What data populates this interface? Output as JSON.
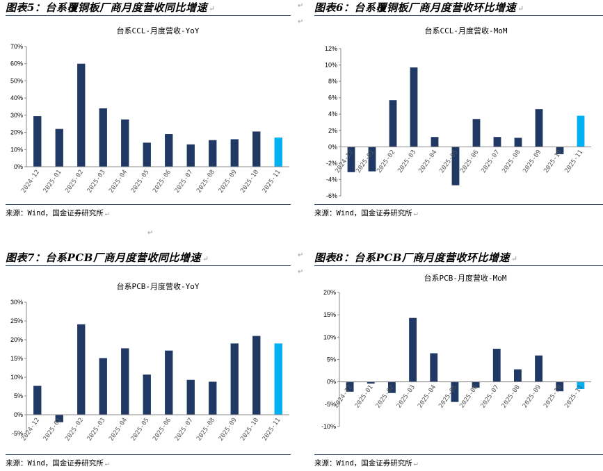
{
  "panels": [
    {
      "id": "fig5",
      "heading": "图表5：台系覆铜板厂商月度营收同比增速",
      "source": "来源：Wind，国金证券研究所",
      "chart_data": {
        "type": "bar",
        "title": "台系CCL-月度营收-YoY",
        "categories": [
          "2024-12",
          "2025-01",
          "2025-02",
          "2025-03",
          "2025-04",
          "2025-05",
          "2025-06",
          "2025-07",
          "2025-08",
          "2025-09",
          "2025-10",
          "2025-11"
        ],
        "values": [
          29.5,
          22,
          60,
          34,
          27.5,
          14,
          19,
          13,
          15.5,
          16,
          20.5,
          17
        ],
        "ylim": [
          0,
          70
        ],
        "yticks": [
          0,
          10,
          20,
          30,
          40,
          50,
          60,
          70
        ],
        "tick_labels": [
          "0%",
          "10%",
          "20%",
          "30%",
          "40%",
          "50%",
          "60%",
          "70%"
        ],
        "colors": {
          "bar": "#1f3864",
          "highlight": "#00b0f0"
        },
        "highlight_index": 11
      }
    },
    {
      "id": "fig6",
      "heading": "图表6：台系覆铜板厂商月度营收环比增速",
      "source": "来源：Wind，国金证券研究所",
      "chart_data": {
        "type": "bar",
        "title": "台系CCL-月度营收-MoM",
        "categories": [
          "2024-12",
          "2025-01",
          "2025-02",
          "2025-03",
          "2025-04",
          "2025-05",
          "2025-06",
          "2025-07",
          "2025-08",
          "2025-09",
          "2025-10",
          "2025-11"
        ],
        "values": [
          -3.1,
          -3.0,
          5.7,
          9.7,
          1.2,
          -4.7,
          3.4,
          1.2,
          1.1,
          4.6,
          -0.9,
          3.8
        ],
        "ylim": [
          -6,
          12
        ],
        "yticks": [
          -6,
          -4,
          -2,
          0,
          2,
          4,
          6,
          8,
          10,
          12
        ],
        "tick_labels": [
          "-6%",
          "-4%",
          "-2%",
          "0%",
          "2%",
          "4%",
          "6%",
          "8%",
          "10%",
          "12%"
        ],
        "colors": {
          "bar": "#1f3864",
          "highlight": "#00b0f0"
        },
        "highlight_index": 11
      }
    },
    {
      "id": "fig7",
      "heading": "图表7：台系PCB厂商月度营收同比增速",
      "source": "来源：Wind，国金证券研究所",
      "chart_data": {
        "type": "bar",
        "title": "台系PCB-月度营收-YoY",
        "categories": [
          "2024-12",
          "2025-01",
          "2025-02",
          "2025-03",
          "2025-04",
          "2025-05",
          "2025-06",
          "2025-07",
          "2025-08",
          "2025-09",
          "2025-10",
          "2025-11"
        ],
        "values": [
          7.7,
          -2.0,
          24.1,
          15.1,
          17.7,
          10.7,
          17.1,
          9.3,
          8.8,
          19.0,
          21.0,
          19.0
        ],
        "ylim": [
          -5,
          30
        ],
        "yticks": [
          -5,
          0,
          5,
          10,
          15,
          20,
          25,
          30
        ],
        "tick_labels": [
          "-5%",
          "0%",
          "5%",
          "10%",
          "15%",
          "20%",
          "25%",
          "30%"
        ],
        "colors": {
          "bar": "#1f3864",
          "highlight": "#00b0f0"
        },
        "highlight_index": 11
      }
    },
    {
      "id": "fig8",
      "heading": "图表8：台系PCB厂商月度营收环比增速",
      "source": "来源：Wind，国金证券研究所",
      "chart_data": {
        "type": "bar",
        "title": "台系PCB-月度营收-MoM",
        "categories": [
          "2024-12",
          "2025-01",
          "2025-02",
          "2025-03",
          "2025-04",
          "2025-05",
          "2025-06",
          "2025-07",
          "2025-08",
          "2025-09",
          "2025-10",
          "2025-11"
        ],
        "values": [
          -2.2,
          -0.4,
          -2.5,
          14.3,
          6.4,
          -4.5,
          -1.3,
          7.4,
          2.8,
          5.9,
          -2.1,
          -1.6
        ],
        "ylim": [
          -10,
          20
        ],
        "yticks": [
          -10,
          -5,
          0,
          5,
          10,
          15,
          20
        ],
        "tick_labels": [
          "-10%",
          "-5%",
          "0%",
          "5%",
          "10%",
          "15%",
          "20%"
        ],
        "colors": {
          "bar": "#1f3864",
          "highlight": "#00b0f0"
        },
        "highlight_index": 11
      }
    }
  ]
}
